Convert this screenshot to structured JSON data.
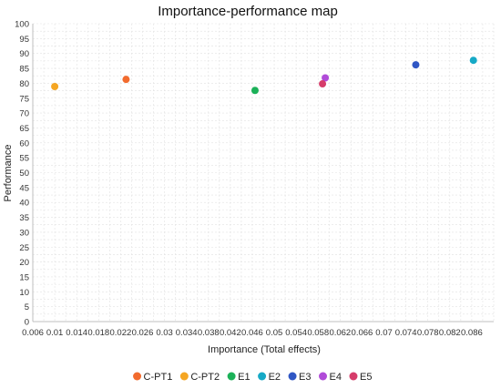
{
  "chart_data": {
    "type": "scatter",
    "title": "Importance-performance map",
    "xlabel": "Importance (Total effects)",
    "ylabel": "Performance",
    "xlim": [
      0.006,
      0.09
    ],
    "ylim": [
      0,
      100
    ],
    "x_ticks": [
      "0.006",
      "0.01",
      "0.014",
      "0.018",
      "0.022",
      "0.026",
      "0.03",
      "0.034",
      "0.038",
      "0.042",
      "0.046",
      "0.05",
      "0.054",
      "0.058",
      "0.062",
      "0.066",
      "0.07",
      "0.074",
      "0.078",
      "0.082",
      "0.086"
    ],
    "y_ticks": [
      0,
      5,
      10,
      15,
      20,
      25,
      30,
      35,
      40,
      45,
      50,
      55,
      60,
      65,
      70,
      75,
      80,
      85,
      90,
      95,
      100
    ],
    "grid": true,
    "legend_position": "bottom",
    "series": [
      {
        "name": "C-PT1",
        "color": "#f26b2e",
        "x": [
          0.023
        ],
        "y": [
          81.3
        ]
      },
      {
        "name": "C-PT2",
        "color": "#f5a623",
        "x": [
          0.01
        ],
        "y": [
          78.9
        ]
      },
      {
        "name": "E1",
        "color": "#1bb158",
        "x": [
          0.0465
        ],
        "y": [
          77.6
        ]
      },
      {
        "name": "E2",
        "color": "#16a9c6",
        "x": [
          0.0863
        ],
        "y": [
          87.7
        ]
      },
      {
        "name": "E3",
        "color": "#2f56c4",
        "x": [
          0.0758
        ],
        "y": [
          86.2
        ]
      },
      {
        "name": "E4",
        "color": "#b04bd8",
        "x": [
          0.0593
        ],
        "y": [
          81.8
        ]
      },
      {
        "name": "E5",
        "color": "#d63c6a",
        "x": [
          0.0588
        ],
        "y": [
          79.8
        ]
      }
    ]
  }
}
